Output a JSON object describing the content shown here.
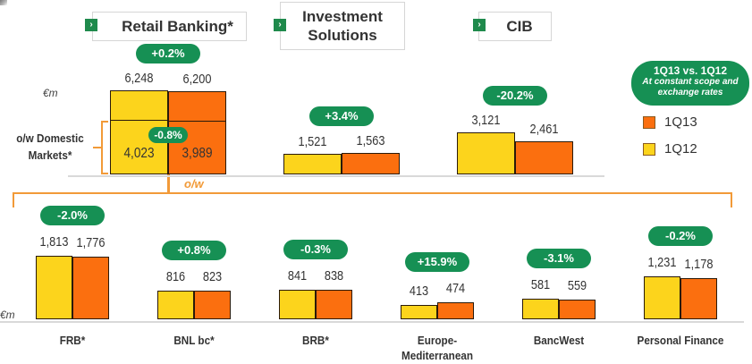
{
  "colors": {
    "q1_13": "#fb6f0f",
    "q1_12": "#fcd41c",
    "pill": "#169054",
    "bracket": "#f29a38"
  },
  "headers": {
    "retail": "Retail Banking*",
    "investment_line1": "Investment",
    "investment_line2": "Solutions",
    "cib": "CIB",
    "arrow_glyph": "›"
  },
  "legend": {
    "title": "1Q13 vs. 1Q12",
    "subtitle_line1": "At constant scope and",
    "subtitle_line2": "exchange rates",
    "items": [
      {
        "label": "1Q13"
      },
      {
        "label": "1Q12"
      }
    ]
  },
  "labels": {
    "unit_top": "€m",
    "unit_bottom": "€m",
    "domestic_line1": "o/w Domestic",
    "domestic_line2": "Markets*",
    "ow": "o/w"
  },
  "chart_data": [
    {
      "type": "bar",
      "title": "Divisions revenues 1Q13 vs 1Q12",
      "unit": "€m",
      "series": [
        {
          "name": "1Q12"
        },
        {
          "name": "1Q13"
        }
      ],
      "categories": [
        "Retail Banking*",
        "Investment Solutions",
        "CIB"
      ],
      "values_1Q12": [
        6248,
        1521,
        3121
      ],
      "values_1Q13": [
        6200,
        1563,
        2461
      ],
      "value_labels_1Q12": [
        "6,248",
        "1,521",
        "3,121"
      ],
      "value_labels_1Q13": [
        "6,200",
        "1,563",
        "2,461"
      ],
      "changes": [
        "+0.2%",
        "+3.4%",
        "-20.2%"
      ],
      "sub_breakdown": {
        "label": "o/w Domestic Markets*",
        "value_1Q12": 4023,
        "value_1Q13": 3989,
        "label_1Q12": "4,023",
        "label_1Q13": "3,989",
        "change": "-0.8%"
      }
    },
    {
      "type": "bar",
      "title": "o/w Retail Banking businesses",
      "unit": "€m",
      "categories": [
        "FRB*",
        "BNL bc*",
        "BRB*",
        "Europe-Mediterranean",
        "BancWest",
        "Personal Finance"
      ],
      "category_lines": [
        [
          "FRB*"
        ],
        [
          "BNL bc*"
        ],
        [
          "BRB*"
        ],
        [
          "Europe-",
          "Mediterranean"
        ],
        [
          "BancWest"
        ],
        [
          "Personal Finance"
        ]
      ],
      "values_1Q12": [
        1813,
        816,
        841,
        413,
        581,
        1231
      ],
      "values_1Q13": [
        1776,
        823,
        838,
        474,
        559,
        1178
      ],
      "value_labels_1Q12": [
        "1,813",
        "816",
        "841",
        "413",
        "581",
        "1,231"
      ],
      "value_labels_1Q13": [
        "1,776",
        "823",
        "838",
        "474",
        "559",
        "1,178"
      ],
      "changes": [
        "-2.0%",
        "+0.8%",
        "-0.3%",
        "+15.9%",
        "-3.1%",
        "-0.2%"
      ]
    }
  ]
}
